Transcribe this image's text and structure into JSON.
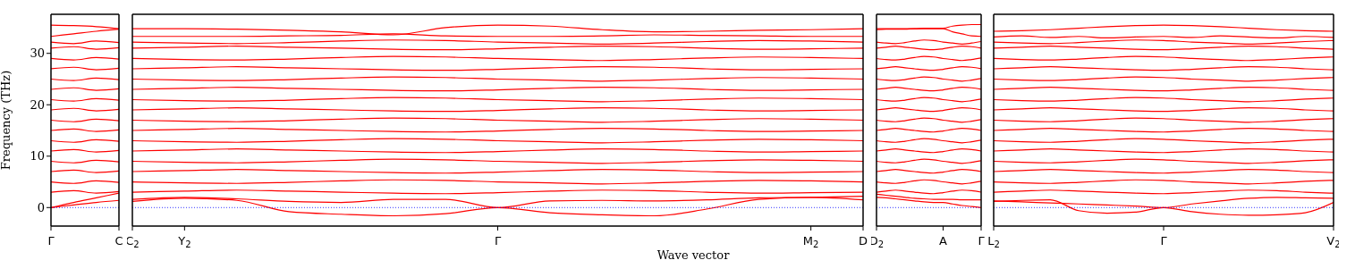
{
  "chart_data": [
    {
      "type": "line",
      "ylabel": "Frequency (THz)",
      "categories": [
        "Γ",
        null,
        null,
        "C"
      ],
      "ylim": [
        -3.6,
        37.6
      ],
      "yticks": [
        0,
        10,
        20,
        30
      ],
      "ref_lines": [
        {
          "axis": "y",
          "value": 0,
          "color": "#0000ff",
          "line_style": "dotted"
        }
      ],
      "series": [
        {
          "color": "#ff0000",
          "values": [
            0,
            0.5,
            1,
            1.4
          ]
        },
        {
          "color": "#ff0000",
          "values": [
            0,
            1,
            1.9,
            2.8
          ]
        },
        {
          "color": "#ff0000",
          "values": [
            35.5,
            35.4,
            35.2,
            34.8
          ]
        },
        {
          "color": "#ff0000",
          "values": [
            33.3,
            33.8,
            34.3,
            34.7
          ]
        },
        {
          "color": "#ff0000",
          "values": [
            3,
            3.3,
            2.8,
            3.1
          ]
        },
        {
          "color": "#ff0000",
          "values": [
            5,
            4.7,
            5.2,
            4.9
          ]
        },
        {
          "color": "#ff0000",
          "values": [
            7,
            7.3,
            6.8,
            7.1
          ]
        },
        {
          "color": "#ff0000",
          "values": [
            9,
            8.7,
            9.2,
            8.9
          ]
        },
        {
          "color": "#ff0000",
          "values": [
            11,
            11.3,
            10.8,
            11.1
          ]
        },
        {
          "color": "#ff0000",
          "values": [
            13,
            12.7,
            13.2,
            12.9
          ]
        },
        {
          "color": "#ff0000",
          "values": [
            15,
            15.3,
            14.8,
            15.1
          ]
        },
        {
          "color": "#ff0000",
          "values": [
            17,
            16.7,
            17.2,
            16.9
          ]
        },
        {
          "color": "#ff0000",
          "values": [
            19,
            19.3,
            18.8,
            19.1
          ]
        },
        {
          "color": "#ff0000",
          "values": [
            21,
            20.7,
            21.2,
            20.9
          ]
        },
        {
          "color": "#ff0000",
          "values": [
            23,
            23.3,
            22.8,
            23.1
          ]
        },
        {
          "color": "#ff0000",
          "values": [
            25,
            24.7,
            25.2,
            24.9
          ]
        },
        {
          "color": "#ff0000",
          "values": [
            27,
            27.3,
            26.8,
            27.1
          ]
        },
        {
          "color": "#ff0000",
          "values": [
            29,
            28.7,
            29.2,
            28.9
          ]
        },
        {
          "color": "#ff0000",
          "values": [
            31,
            31.3,
            30.8,
            31.1
          ]
        },
        {
          "color": "#ff0000",
          "values": [
            32.2,
            31.9,
            32.4,
            32.1
          ]
        }
      ]
    },
    {
      "type": "line",
      "xlabel": "Wave vector",
      "categories": [
        "C$_{2}$",
        "Y$_{2}$",
        null,
        null,
        null,
        null,
        null,
        "Γ",
        null,
        null,
        null,
        null,
        null,
        "M$_{2}$",
        "D"
      ],
      "ylim": [
        -3.6,
        37.6
      ],
      "yticks": [
        0,
        10,
        20,
        30
      ],
      "tick_labels": "x",
      "ref_lines": [
        {
          "axis": "y",
          "value": 0,
          "color": "#0000ff",
          "line_style": "dotted"
        }
      ],
      "series": [
        {
          "color": "#ff0000",
          "values": [
            1.2,
            1.8,
            1.4,
            -0.8,
            -1.3,
            -1.6,
            -1.2,
            0,
            -1,
            -1.4,
            -1.6,
            -0.3,
            1.6,
            2,
            1.5
          ]
        },
        {
          "color": "#ff0000",
          "values": [
            1.6,
            2,
            1.7,
            1.2,
            1,
            1.6,
            1.6,
            0,
            1.3,
            1.4,
            1.3,
            1.5,
            1.9,
            2,
            2.2
          ]
        },
        {
          "color": "#ff0000",
          "values": [
            34.8,
            34.8,
            34.7,
            34.5,
            34.2,
            33.6,
            35,
            35.5,
            35.3,
            34.6,
            34.2,
            34.3,
            34.5,
            34.6,
            34.8
          ]
        },
        {
          "color": "#ff0000",
          "values": [
            33.3,
            33.3,
            33.3,
            33.4,
            33.5,
            33.8,
            33.4,
            33.3,
            33.3,
            33.4,
            33.6,
            33.5,
            33.4,
            33.3,
            33.3
          ]
        },
        {
          "color": "#ff0000",
          "values": [
            3,
            3.2,
            3.4,
            3.2,
            3,
            2.8,
            2.7,
            2.9,
            3.2,
            3.4,
            3.3,
            3,
            2.8,
            2.9,
            3
          ]
        },
        {
          "color": "#ff0000",
          "values": [
            5,
            4.8,
            4.7,
            4.9,
            5.2,
            5.4,
            5.3,
            5,
            4.8,
            4.6,
            4.8,
            5.1,
            5.3,
            5.2,
            5
          ]
        },
        {
          "color": "#ff0000",
          "values": [
            7,
            7.2,
            7.4,
            7.2,
            7,
            6.8,
            6.7,
            6.9,
            7.2,
            7.4,
            7.3,
            7,
            6.8,
            6.9,
            7
          ]
        },
        {
          "color": "#ff0000",
          "values": [
            9,
            8.8,
            8.7,
            8.9,
            9.2,
            9.4,
            9.3,
            9,
            8.8,
            8.6,
            8.8,
            9.1,
            9.3,
            9.2,
            9
          ]
        },
        {
          "color": "#ff0000",
          "values": [
            11,
            11.2,
            11.4,
            11.2,
            11,
            10.8,
            10.7,
            10.9,
            11.2,
            11.4,
            11.3,
            11,
            10.8,
            10.9,
            11
          ]
        },
        {
          "color": "#ff0000",
          "values": [
            13,
            12.8,
            12.7,
            12.9,
            13.2,
            13.4,
            13.3,
            13,
            12.8,
            12.6,
            12.8,
            13.1,
            13.3,
            13.2,
            13
          ]
        },
        {
          "color": "#ff0000",
          "values": [
            15,
            15.2,
            15.4,
            15.2,
            15,
            14.8,
            14.7,
            14.9,
            15.2,
            15.4,
            15.3,
            15,
            14.8,
            14.9,
            15
          ]
        },
        {
          "color": "#ff0000",
          "values": [
            17,
            16.8,
            16.7,
            16.9,
            17.2,
            17.4,
            17.3,
            17,
            16.8,
            16.6,
            16.8,
            17.1,
            17.3,
            17.2,
            17
          ]
        },
        {
          "color": "#ff0000",
          "values": [
            19,
            19.2,
            19.4,
            19.2,
            19,
            18.8,
            18.7,
            18.9,
            19.2,
            19.4,
            19.3,
            19,
            18.8,
            18.9,
            19
          ]
        },
        {
          "color": "#ff0000",
          "values": [
            21,
            20.8,
            20.7,
            20.9,
            21.2,
            21.4,
            21.3,
            21,
            20.8,
            20.6,
            20.8,
            21.1,
            21.3,
            21.2,
            21
          ]
        },
        {
          "color": "#ff0000",
          "values": [
            23,
            23.2,
            23.4,
            23.2,
            23,
            22.8,
            22.7,
            22.9,
            23.2,
            23.4,
            23.3,
            23,
            22.8,
            22.9,
            23
          ]
        },
        {
          "color": "#ff0000",
          "values": [
            25,
            24.8,
            24.7,
            24.9,
            25.2,
            25.4,
            25.3,
            25,
            24.8,
            24.6,
            24.8,
            25.1,
            25.3,
            25.2,
            25
          ]
        },
        {
          "color": "#ff0000",
          "values": [
            27,
            27.2,
            27.4,
            27.2,
            27,
            26.8,
            26.7,
            26.9,
            27.2,
            27.4,
            27.3,
            27,
            26.8,
            26.9,
            27
          ]
        },
        {
          "color": "#ff0000",
          "values": [
            29,
            28.8,
            28.7,
            28.9,
            29.2,
            29.4,
            29.3,
            29,
            28.8,
            28.6,
            28.8,
            29.1,
            29.3,
            29.2,
            29
          ]
        },
        {
          "color": "#ff0000",
          "values": [
            31,
            31.2,
            31.4,
            31.2,
            31,
            30.8,
            30.7,
            30.9,
            31.2,
            31.4,
            31.3,
            31,
            30.8,
            30.9,
            31
          ]
        },
        {
          "color": "#ff0000",
          "values": [
            32.2,
            32,
            31.9,
            32.1,
            32.4,
            32.6,
            32.5,
            32.2,
            32,
            31.8,
            32,
            32.3,
            32.5,
            32.4,
            32.2
          ]
        }
      ]
    },
    {
      "type": "line",
      "categories": [
        "D$_{2}$",
        null,
        null,
        null,
        null,
        null,
        null,
        "A",
        null,
        null,
        null,
        "Γ"
      ],
      "ylim": [
        -3.6,
        37.6
      ],
      "yticks": [
        0,
        10,
        20,
        30
      ],
      "tick_labels": "x",
      "ref_lines": [
        {
          "axis": "y",
          "value": 0,
          "color": "#0000ff",
          "line_style": "dotted"
        }
      ],
      "series": [
        {
          "color": "#ff0000",
          "values": [
            34.8,
            34.8,
            34.8,
            34.8,
            34.8,
            34.9,
            34.9,
            34.9,
            35.3,
            35.5,
            35.6,
            35.6
          ]
        },
        {
          "color": "#ff0000",
          "values": [
            34.6,
            34.7,
            34.7,
            34.7,
            34.8,
            34.8,
            34.8,
            34.8,
            34.2,
            33.8,
            33.4,
            33.3
          ]
        },
        {
          "color": "#ff0000",
          "values": [
            2,
            1.9,
            1.7,
            1.5,
            1.3,
            1.1,
            1,
            1,
            0.7,
            0.4,
            0.2,
            0
          ]
        },
        {
          "color": "#ff0000",
          "values": [
            2.6,
            2.4,
            2.2,
            2,
            1.8,
            1.7,
            1.6,
            1.6,
            1.6,
            1.5,
            1.5,
            1.5
          ]
        },
        {
          "color": "#ff0000",
          "values": [
            3,
            3.2,
            3.4,
            3.2,
            3,
            2.8,
            2.7,
            2.9,
            3.2,
            3.4,
            3.3,
            3
          ]
        },
        {
          "color": "#ff0000",
          "values": [
            5,
            4.8,
            4.7,
            4.9,
            5.2,
            5.4,
            5.3,
            5,
            4.8,
            4.6,
            4.8,
            5.1
          ]
        },
        {
          "color": "#ff0000",
          "values": [
            7,
            7.2,
            7.4,
            7.2,
            7,
            6.8,
            6.7,
            6.9,
            7.2,
            7.4,
            7.3,
            7
          ]
        },
        {
          "color": "#ff0000",
          "values": [
            9,
            8.8,
            8.7,
            8.9,
            9.2,
            9.4,
            9.3,
            9,
            8.8,
            8.6,
            8.8,
            9.1
          ]
        },
        {
          "color": "#ff0000",
          "values": [
            11,
            11.2,
            11.4,
            11.2,
            11,
            10.8,
            10.7,
            10.9,
            11.2,
            11.4,
            11.3,
            11
          ]
        },
        {
          "color": "#ff0000",
          "values": [
            13,
            12.8,
            12.7,
            12.9,
            13.2,
            13.4,
            13.3,
            13,
            12.8,
            12.6,
            12.8,
            13.1
          ]
        },
        {
          "color": "#ff0000",
          "values": [
            15,
            15.2,
            15.4,
            15.2,
            15,
            14.8,
            14.7,
            14.9,
            15.2,
            15.4,
            15.3,
            15
          ]
        },
        {
          "color": "#ff0000",
          "values": [
            17,
            16.8,
            16.7,
            16.9,
            17.2,
            17.4,
            17.3,
            17,
            16.8,
            16.6,
            16.8,
            17.1
          ]
        },
        {
          "color": "#ff0000",
          "values": [
            19,
            19.2,
            19.4,
            19.2,
            19,
            18.8,
            18.7,
            18.9,
            19.2,
            19.4,
            19.3,
            19
          ]
        },
        {
          "color": "#ff0000",
          "values": [
            21,
            20.8,
            20.7,
            20.9,
            21.2,
            21.4,
            21.3,
            21,
            20.8,
            20.6,
            20.8,
            21.1
          ]
        },
        {
          "color": "#ff0000",
          "values": [
            23,
            23.2,
            23.4,
            23.2,
            23,
            22.8,
            22.7,
            22.9,
            23.2,
            23.4,
            23.3,
            23
          ]
        },
        {
          "color": "#ff0000",
          "values": [
            25,
            24.8,
            24.7,
            24.9,
            25.2,
            25.4,
            25.3,
            25,
            24.8,
            24.6,
            24.8,
            25.1
          ]
        },
        {
          "color": "#ff0000",
          "values": [
            27,
            27.2,
            27.4,
            27.2,
            27,
            26.8,
            26.7,
            26.9,
            27.2,
            27.4,
            27.3,
            27
          ]
        },
        {
          "color": "#ff0000",
          "values": [
            29,
            28.8,
            28.7,
            28.9,
            29.2,
            29.4,
            29.3,
            29,
            28.8,
            28.6,
            28.8,
            29.1
          ]
        },
        {
          "color": "#ff0000",
          "values": [
            31,
            31.2,
            31.4,
            31.2,
            31,
            30.8,
            30.7,
            30.9,
            31.2,
            31.4,
            31.3,
            31
          ]
        },
        {
          "color": "#ff0000",
          "values": [
            32.2,
            32,
            31.9,
            32.1,
            32.4,
            32.6,
            32.5,
            32.2,
            32,
            31.8,
            32,
            32.3
          ]
        }
      ]
    },
    {
      "type": "line",
      "categories": [
        "L$_{2}$",
        null,
        null,
        null,
        null,
        null,
        "Γ",
        null,
        null,
        null,
        null,
        null,
        "V$_{2}$"
      ],
      "ylim": [
        -3.6,
        37.6
      ],
      "yticks": [
        0,
        10,
        20,
        30
      ],
      "tick_labels": "x",
      "ref_lines": [
        {
          "axis": "y",
          "value": 0,
          "color": "#0000ff",
          "line_style": "dotted"
        }
      ],
      "series": [
        {
          "color": "#ff0000",
          "values": [
            1.2,
            1.4,
            1.5,
            -0.6,
            -1.1,
            -0.9,
            0,
            -0.8,
            -1.3,
            -1.5,
            -1.4,
            -1,
            1
          ]
        },
        {
          "color": "#ff0000",
          "values": [
            1.3,
            1.1,
            0.9,
            0.7,
            0.5,
            0.3,
            0,
            0.7,
            1.3,
            1.8,
            2,
            1.9,
            1.8
          ]
        },
        {
          "color": "#ff0000",
          "values": [
            34.3,
            34.4,
            34.6,
            34.9,
            35.2,
            35.4,
            35.5,
            35.4,
            35.2,
            34.9,
            34.6,
            34.4,
            34.3
          ]
        },
        {
          "color": "#ff0000",
          "values": [
            33.2,
            33.4,
            33.1,
            33.3,
            33,
            33.2,
            33.3,
            33.1,
            33.4,
            33.2,
            33,
            33.3,
            33.1
          ]
        },
        {
          "color": "#ff0000",
          "values": [
            3,
            3.2,
            3.4,
            3.2,
            3,
            2.8,
            2.7,
            2.9,
            3.2,
            3.4,
            3.3,
            3,
            2.8
          ]
        },
        {
          "color": "#ff0000",
          "values": [
            5,
            4.8,
            4.7,
            4.9,
            5.2,
            5.4,
            5.3,
            5,
            4.8,
            4.6,
            4.8,
            5.1,
            5.3
          ]
        },
        {
          "color": "#ff0000",
          "values": [
            7,
            7.2,
            7.4,
            7.2,
            7,
            6.8,
            6.7,
            6.9,
            7.2,
            7.4,
            7.3,
            7,
            6.8
          ]
        },
        {
          "color": "#ff0000",
          "values": [
            9,
            8.8,
            8.7,
            8.9,
            9.2,
            9.4,
            9.3,
            9,
            8.8,
            8.6,
            8.8,
            9.1,
            9.3
          ]
        },
        {
          "color": "#ff0000",
          "values": [
            11,
            11.2,
            11.4,
            11.2,
            11,
            10.8,
            10.7,
            10.9,
            11.2,
            11.4,
            11.3,
            11,
            10.8
          ]
        },
        {
          "color": "#ff0000",
          "values": [
            13,
            12.8,
            12.7,
            12.9,
            13.2,
            13.4,
            13.3,
            13,
            12.8,
            12.6,
            12.8,
            13.1,
            13.3
          ]
        },
        {
          "color": "#ff0000",
          "values": [
            15,
            15.2,
            15.4,
            15.2,
            15,
            14.8,
            14.7,
            14.9,
            15.2,
            15.4,
            15.3,
            15,
            14.8
          ]
        },
        {
          "color": "#ff0000",
          "values": [
            17,
            16.8,
            16.7,
            16.9,
            17.2,
            17.4,
            17.3,
            17,
            16.8,
            16.6,
            16.8,
            17.1,
            17.3
          ]
        },
        {
          "color": "#ff0000",
          "values": [
            19,
            19.2,
            19.4,
            19.2,
            19,
            18.8,
            18.7,
            18.9,
            19.2,
            19.4,
            19.3,
            19,
            18.8
          ]
        },
        {
          "color": "#ff0000",
          "values": [
            21,
            20.8,
            20.7,
            20.9,
            21.2,
            21.4,
            21.3,
            21,
            20.8,
            20.6,
            20.8,
            21.1,
            21.3
          ]
        },
        {
          "color": "#ff0000",
          "values": [
            23,
            23.2,
            23.4,
            23.2,
            23,
            22.8,
            22.7,
            22.9,
            23.2,
            23.4,
            23.3,
            23,
            22.8
          ]
        },
        {
          "color": "#ff0000",
          "values": [
            25,
            24.8,
            24.7,
            24.9,
            25.2,
            25.4,
            25.3,
            25,
            24.8,
            24.6,
            24.8,
            25.1,
            25.3
          ]
        },
        {
          "color": "#ff0000",
          "values": [
            27,
            27.2,
            27.4,
            27.2,
            27,
            26.8,
            26.7,
            26.9,
            27.2,
            27.4,
            27.3,
            27,
            26.8
          ]
        },
        {
          "color": "#ff0000",
          "values": [
            29,
            28.8,
            28.7,
            28.9,
            29.2,
            29.4,
            29.3,
            29,
            28.8,
            28.6,
            28.8,
            29.1,
            29.3
          ]
        },
        {
          "color": "#ff0000",
          "values": [
            31,
            31.2,
            31.4,
            31.2,
            31,
            30.8,
            30.7,
            30.9,
            31.2,
            31.4,
            31.3,
            31,
            30.8
          ]
        },
        {
          "color": "#ff0000",
          "values": [
            32.2,
            32,
            31.9,
            32.1,
            32.4,
            32.6,
            32.5,
            32.2,
            32,
            31.8,
            32,
            32.3,
            32.5
          ]
        }
      ]
    }
  ]
}
